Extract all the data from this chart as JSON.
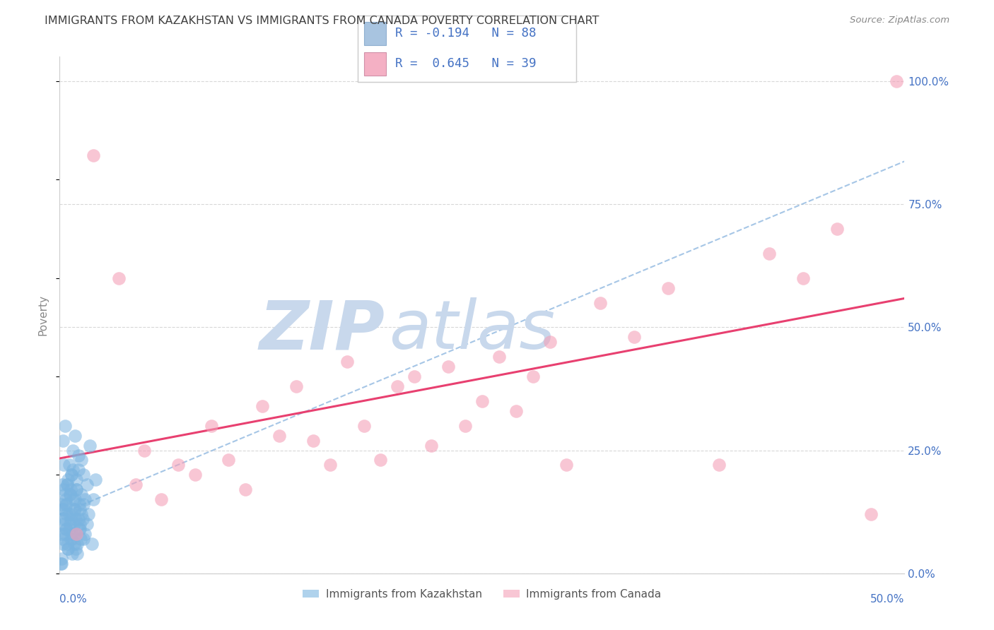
{
  "title": "IMMIGRANTS FROM KAZAKHSTAN VS IMMIGRANTS FROM CANADA POVERTY CORRELATION CHART",
  "source": "Source: ZipAtlas.com",
  "ylabel": "Poverty",
  "xlim": [
    0,
    50
  ],
  "ylim": [
    0,
    105
  ],
  "ytick_values": [
    0,
    25,
    50,
    75,
    100
  ],
  "legend_kaz_label": "Immigrants from Kazakhstan",
  "legend_can_label": "Immigrants from Canada",
  "kaz_scatter_color": "#7ab4e0",
  "can_scatter_color": "#f4a0b8",
  "trendline_kaz_color": "#90b8e0",
  "trendline_can_color": "#e84070",
  "watermark_zip_color": "#c8d8ec",
  "watermark_atlas_color": "#c8d8ec",
  "grid_color": "#d8d8d8",
  "title_color": "#404040",
  "axis_label_color": "#4472c4",
  "legend_box_color": "#a8c4e0",
  "legend_can_box_color": "#f4b0c4",
  "kaz_x": [
    0.1,
    0.15,
    0.2,
    0.25,
    0.3,
    0.35,
    0.4,
    0.45,
    0.5,
    0.55,
    0.6,
    0.65,
    0.7,
    0.75,
    0.8,
    0.85,
    0.9,
    0.95,
    1.0,
    1.1,
    1.2,
    1.3,
    1.4,
    1.5,
    1.6,
    1.7,
    1.8,
    1.9,
    2.0,
    2.1,
    0.1,
    0.2,
    0.3,
    0.1,
    0.15,
    0.2,
    0.25,
    0.3,
    0.35,
    0.4,
    0.45,
    0.5,
    0.55,
    0.6,
    0.65,
    0.7,
    0.75,
    0.8,
    0.85,
    0.9,
    0.95,
    1.0,
    1.05,
    1.1,
    1.15,
    1.2,
    1.25,
    1.3,
    1.35,
    1.4,
    0.05,
    0.1,
    0.15,
    0.2,
    0.25,
    0.3,
    0.35,
    0.4,
    0.45,
    0.5,
    0.55,
    0.6,
    0.65,
    0.7,
    0.75,
    0.8,
    0.85,
    0.9,
    0.95,
    1.0,
    1.05,
    1.1,
    1.15,
    1.2,
    1.3,
    1.4,
    1.5,
    1.6
  ],
  "kaz_y": [
    14,
    18,
    10,
    22,
    8,
    15,
    12,
    6,
    19,
    9,
    16,
    11,
    20,
    7,
    25,
    13,
    28,
    5,
    17,
    21,
    10,
    23,
    14,
    8,
    18,
    12,
    26,
    6,
    15,
    19,
    3,
    27,
    30,
    2,
    11,
    7,
    13,
    16,
    9,
    14,
    18,
    5,
    22,
    10,
    17,
    12,
    8,
    21,
    6,
    15,
    11,
    19,
    4,
    24,
    9,
    13,
    7,
    16,
    11,
    20,
    2,
    8,
    13,
    6,
    17,
    11,
    14,
    9,
    18,
    5,
    12,
    16,
    7,
    20,
    4,
    15,
    10,
    13,
    8,
    17,
    6,
    11,
    14,
    9,
    12,
    7,
    15,
    10
  ],
  "can_x": [
    1.0,
    2.0,
    3.5,
    4.5,
    5.0,
    6.0,
    7.0,
    8.0,
    9.0,
    10.0,
    11.0,
    12.0,
    13.0,
    14.0,
    15.0,
    16.0,
    17.0,
    18.0,
    19.0,
    20.0,
    21.0,
    22.0,
    23.0,
    24.0,
    25.0,
    26.0,
    27.0,
    28.0,
    29.0,
    30.0,
    32.0,
    34.0,
    36.0,
    39.0,
    42.0,
    44.0,
    46.0,
    48.0,
    49.5
  ],
  "can_y": [
    8,
    85,
    60,
    18,
    25,
    15,
    22,
    20,
    30,
    23,
    17,
    34,
    28,
    38,
    27,
    22,
    43,
    30,
    23,
    38,
    40,
    26,
    42,
    30,
    35,
    44,
    33,
    40,
    47,
    22,
    55,
    48,
    58,
    22,
    65,
    60,
    70,
    12,
    100
  ]
}
